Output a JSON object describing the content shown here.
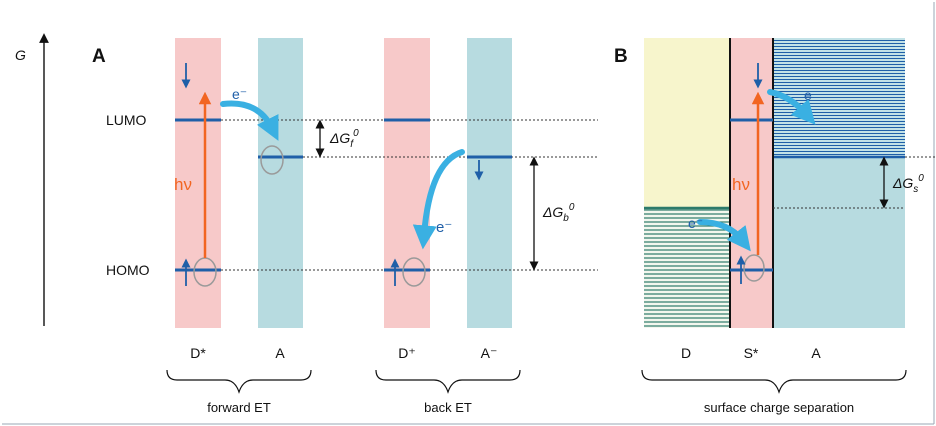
{
  "axis": {
    "label": "G"
  },
  "panel_a": {
    "label": "A",
    "levels": {
      "lumo": "LUMO",
      "homo": "HOMO"
    },
    "photon": "hν",
    "electron_forward": "e⁻",
    "electron_back": "e⁻",
    "delta_gf": {
      "base": "ΔG",
      "sub": "f",
      "sup": "0"
    },
    "delta_gb": {
      "base": "ΔG",
      "sub": "b",
      "sup": "0"
    },
    "columns": [
      "D*",
      "A",
      "D⁺",
      "A⁻"
    ],
    "groups": {
      "forward": "forward ET",
      "back": "back ET"
    }
  },
  "panel_b": {
    "label": "B",
    "photon": "hν",
    "electron_top": "e",
    "electron_bottom": "e⁻",
    "delta_gs": {
      "base": "ΔG",
      "sub": "s",
      "sup": "0"
    },
    "columns": [
      "D",
      "S*",
      "A"
    ],
    "group": "surface charge separation"
  },
  "colors": {
    "donor_band": "#f7c9c9",
    "acceptor_band": "#b7dbe0",
    "yellow_band": "#f7f5cc",
    "level_line": "#1f5fa8",
    "hatch": "#2d7a6a",
    "photon_arrow": "#f26522",
    "electron_arrow": "#3ab0e2",
    "spin_arrow": "#1f5fa8",
    "border": "#9aa7b4"
  }
}
